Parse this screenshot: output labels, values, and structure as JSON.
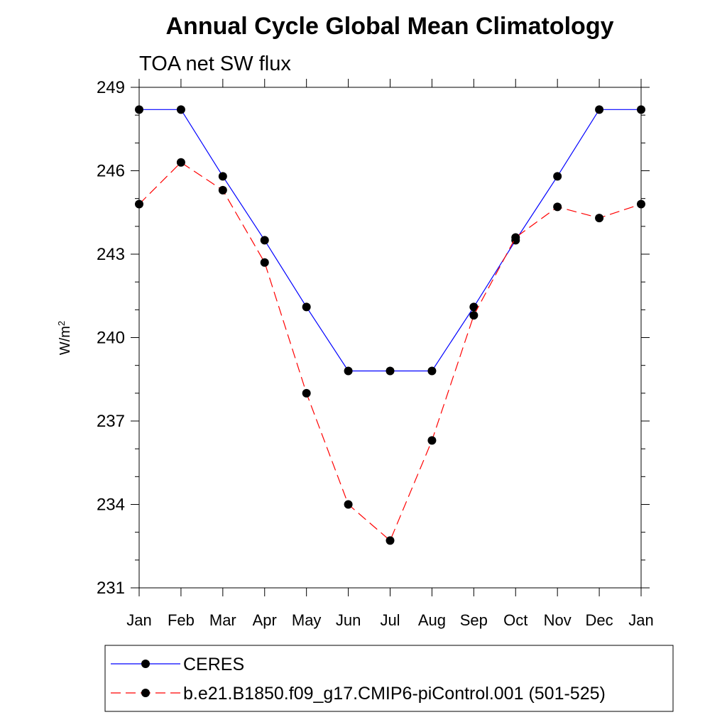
{
  "chart_data": {
    "type": "line",
    "title": "Annual Cycle Global Mean Climatology",
    "subtitle": "TOA net SW flux",
    "xlabel": "",
    "ylabel": "W/m",
    "ylabel_sup": "2",
    "categories": [
      "Jan",
      "Feb",
      "Mar",
      "Apr",
      "May",
      "Jun",
      "Jul",
      "Aug",
      "Sep",
      "Oct",
      "Nov",
      "Dec",
      "Jan"
    ],
    "ylim": [
      231,
      249
    ],
    "yticks": [
      231,
      234,
      237,
      240,
      243,
      246,
      249
    ],
    "ytick_labels": [
      "231",
      "234",
      "237",
      "240",
      "243",
      "246",
      "249"
    ],
    "grid": false,
    "legend_position": "bottom",
    "series": [
      {
        "name": "CERES",
        "color": "#0000ff",
        "dash": "solid",
        "values": [
          248.2,
          248.2,
          245.8,
          243.5,
          241.1,
          238.8,
          238.8,
          238.8,
          241.1,
          243.5,
          245.8,
          248.2,
          248.2
        ]
      },
      {
        "name": "b.e21.B1850.f09_g17.CMIP6-piControl.001 (501-525)",
        "color": "#ff0000",
        "dash": "dashed",
        "values": [
          244.8,
          246.3,
          245.3,
          242.7,
          238.0,
          234.0,
          232.7,
          236.3,
          240.8,
          243.6,
          244.7,
          244.3,
          244.8
        ]
      }
    ]
  }
}
